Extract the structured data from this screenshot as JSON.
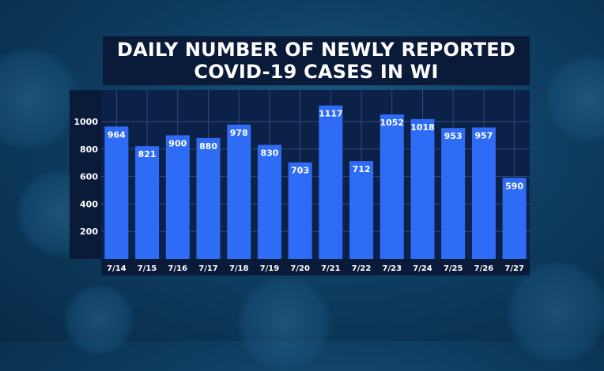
{
  "title": {
    "line1": "DAILY NUMBER OF NEWLY REPORTED",
    "line2": "COVID-19 CASES IN WI"
  },
  "colors": {
    "bar": "#2f6cf6",
    "panel": "#0a1b3a",
    "plot_bg": "#0c2148",
    "grid": "#2f4a7d",
    "text": "#ffffff"
  },
  "chart_data": {
    "type": "bar",
    "categories": [
      "7/14",
      "7/15",
      "7/16",
      "7/17",
      "7/18",
      "7/19",
      "7/20",
      "7/21",
      "7/22",
      "7/23",
      "7/24",
      "7/25",
      "7/26",
      "7/27"
    ],
    "values": [
      964,
      821,
      900,
      880,
      978,
      830,
      703,
      1117,
      712,
      1052,
      1018,
      953,
      957,
      590
    ],
    "yticks": [
      200,
      400,
      600,
      800,
      1000
    ],
    "ylim": [
      0,
      1230
    ],
    "grid": true,
    "data_labels": true
  }
}
